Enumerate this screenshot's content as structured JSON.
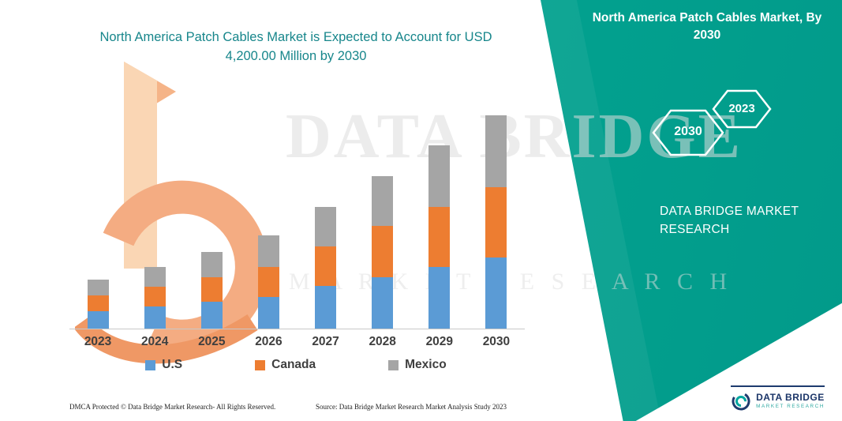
{
  "chart": {
    "title_line1": "North America Patch Cables Market is Expected to Account for USD",
    "title_line2": "4,200.00 Million by 2030",
    "title_color": "#17868B"
  },
  "chart_data": {
    "type": "bar",
    "stacked": true,
    "title": "North America Patch Cables Market is Expected to Account for USD 4,200.00 Million by 2030",
    "categories": [
      "2023",
      "2024",
      "2025",
      "2026",
      "2027",
      "2028",
      "2029",
      "2030"
    ],
    "series": [
      {
        "name": "U.S",
        "color": "#5B9BD5",
        "values": [
          340,
          430,
          530,
          625,
          845,
          1015,
          1220,
          1405
        ]
      },
      {
        "name": "Canada",
        "color": "#ED7D31",
        "values": [
          310,
          390,
          480,
          590,
          780,
          1000,
          1170,
          1375
        ]
      },
      {
        "name": "Mexico",
        "color": "#A5A5A5",
        "values": [
          315,
          390,
          500,
          625,
          765,
          985,
          1215,
          1420
        ]
      }
    ],
    "units": "USD Million",
    "ylim": [
      0,
      4200
    ],
    "grid": false,
    "legend_position": "bottom"
  },
  "watermark": {
    "line1": "DATA BRIDGE",
    "line2": "M A R K E T   R E S E A R C H"
  },
  "right_panel": {
    "title": "North America Patch Cables Market, By 2030",
    "hexagon_back": "2030",
    "hexagon_front": "2023",
    "brand_line1": "DATA BRIDGE MARKET",
    "brand_line2": "RESEARCH",
    "teal_color": "#02A390"
  },
  "footer": {
    "dmca": "DMCA Protected © Data Bridge Market Research-  All Rights Reserved.",
    "source": "Source: Data Bridge Market Research  Market Analysis Study 2023"
  },
  "bottom_logo": {
    "name": "DATA BRIDGE",
    "subtitle": "MARKET RESEARCH"
  }
}
